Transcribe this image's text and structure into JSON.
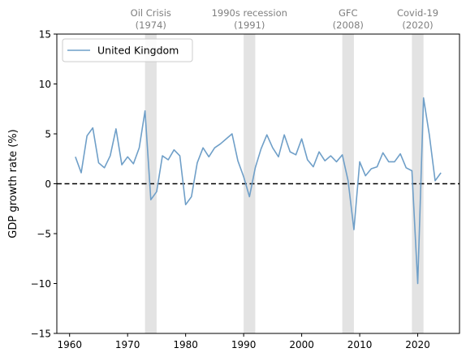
{
  "chart_data": {
    "type": "line",
    "xlabel": "",
    "ylabel": "GDP growth rate (%)",
    "xlim": [
      1957.8,
      2027.2
    ],
    "ylim": [
      -15,
      15
    ],
    "xticks": [
      1960,
      1970,
      1980,
      1990,
      2000,
      2010,
      2020
    ],
    "yticks": [
      -15,
      -10,
      -5,
      0,
      5,
      10,
      15
    ],
    "legend_position": "upper-left",
    "grid": false,
    "zero_line": {
      "y": 0,
      "style": "dashed",
      "color": "#000000"
    },
    "series": [
      {
        "name": "United Kingdom",
        "color": "#6f9fc8",
        "x": [
          1961,
          1962,
          1963,
          1964,
          1965,
          1966,
          1967,
          1968,
          1969,
          1970,
          1971,
          1972,
          1973,
          1974,
          1975,
          1976,
          1977,
          1978,
          1979,
          1980,
          1981,
          1982,
          1983,
          1984,
          1985,
          1986,
          1987,
          1988,
          1989,
          1990,
          1991,
          1992,
          1993,
          1994,
          1995,
          1996,
          1997,
          1998,
          1999,
          2000,
          2001,
          2002,
          2003,
          2004,
          2005,
          2006,
          2007,
          2008,
          2009,
          2010,
          2011,
          2012,
          2013,
          2014,
          2015,
          2016,
          2017,
          2018,
          2019,
          2020,
          2021,
          2022,
          2023,
          2024
        ],
        "y": [
          2.7,
          1.1,
          4.8,
          5.6,
          2.1,
          1.6,
          2.8,
          5.5,
          1.9,
          2.7,
          2.0,
          3.6,
          7.3,
          -1.6,
          -0.8,
          2.8,
          2.4,
          3.4,
          2.8,
          -2.1,
          -1.3,
          2.1,
          3.6,
          2.7,
          3.6,
          4.0,
          4.5,
          5.0,
          2.3,
          0.7,
          -1.3,
          1.6,
          3.5,
          4.9,
          3.6,
          2.7,
          4.9,
          3.2,
          2.9,
          4.5,
          2.4,
          1.7,
          3.2,
          2.3,
          2.8,
          2.2,
          2.9,
          0.3,
          -4.6,
          2.2,
          0.8,
          1.5,
          1.7,
          3.1,
          2.2,
          2.2,
          3.0,
          1.6,
          1.3,
          -10.0,
          8.6,
          4.9,
          0.3,
          1.1
        ]
      }
    ],
    "shaded_periods": [
      {
        "label": "Oil Crisis",
        "year_label": "(1974)",
        "start": 1973,
        "end": 1975
      },
      {
        "label": "1990s recession",
        "year_label": "(1991)",
        "start": 1990,
        "end": 1992
      },
      {
        "label": "GFC",
        "year_label": "(2008)",
        "start": 2007,
        "end": 2009
      },
      {
        "label": "Covid-19",
        "year_label": "(2020)",
        "start": 2019,
        "end": 2021
      }
    ]
  }
}
